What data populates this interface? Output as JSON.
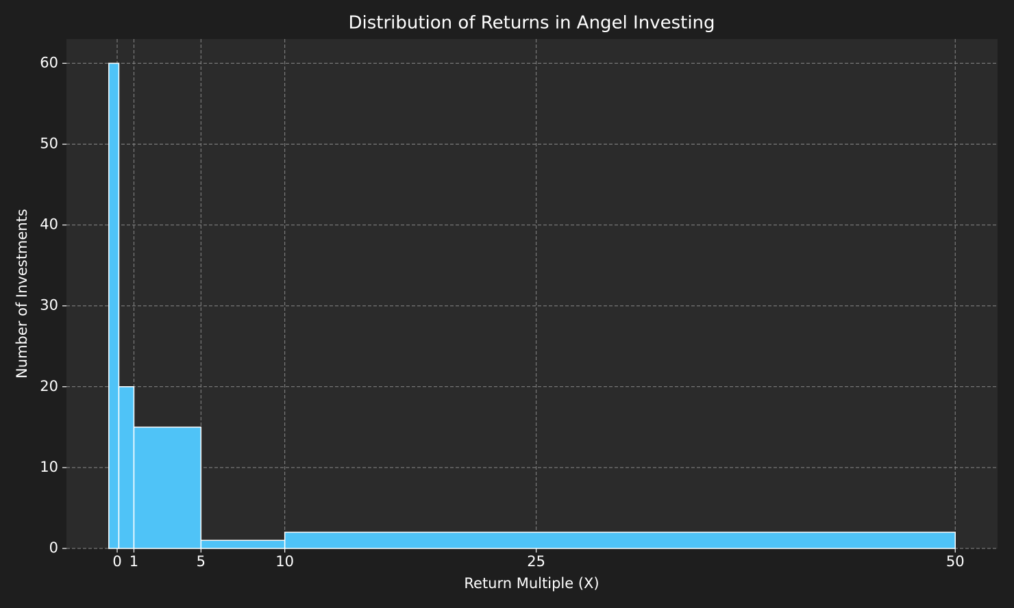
{
  "chart_data": {
    "type": "histogram",
    "title": "Distribution of Returns in Angel Investing",
    "xlabel": "Return Multiple (X)",
    "ylabel": "Number of Investments",
    "bins": [
      -0.5,
      0.1,
      1,
      5,
      10,
      50
    ],
    "values": [
      60,
      20,
      15,
      1,
      2
    ],
    "color": "#4fc3f7",
    "xlim": [
      -3.025,
      52.525
    ],
    "xticks": [
      0,
      1,
      5,
      10,
      25,
      50
    ],
    "ylim": [
      0,
      63
    ],
    "yticks": [
      0,
      10,
      20,
      30,
      40,
      50,
      60
    ],
    "grid": true
  }
}
